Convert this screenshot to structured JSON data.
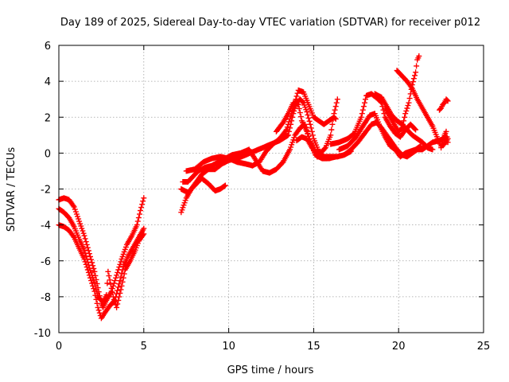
{
  "chart_data": {
    "type": "scatter",
    "title": "Day 189 of 2025, Sidereal Day-to-day VTEC variation (SDTVAR) for receiver p012",
    "xlabel": "GPS time / hours",
    "ylabel": "SDTVAR / TECUs",
    "xlim": [
      0,
      25
    ],
    "ylim": [
      -10,
      6
    ],
    "xticks": [
      0,
      5,
      10,
      15,
      20,
      25
    ],
    "yticks": [
      -10,
      -8,
      -6,
      -4,
      -2,
      0,
      2,
      4,
      6
    ],
    "grid": true,
    "marker": "plus",
    "color": "#ff0000",
    "series": [
      {
        "points": [
          [
            0.0,
            -2.6
          ],
          [
            0.3,
            -2.5
          ],
          [
            0.6,
            -2.6
          ],
          [
            0.9,
            -3.0
          ],
          [
            1.2,
            -3.8
          ],
          [
            1.5,
            -4.6
          ],
          [
            1.8,
            -5.6
          ],
          [
            2.1,
            -6.6
          ],
          [
            2.3,
            -7.5
          ],
          [
            2.5,
            -8.4
          ],
          [
            2.6,
            -8.6
          ],
          [
            2.8,
            -8.2
          ],
          [
            3.1,
            -7.7
          ],
          [
            3.4,
            -6.8
          ],
          [
            3.7,
            -5.9
          ],
          [
            4.0,
            -5.1
          ],
          [
            4.3,
            -4.6
          ],
          [
            4.6,
            -4.0
          ],
          [
            4.8,
            -3.2
          ],
          [
            5.0,
            -2.5
          ]
        ]
      },
      {
        "points": [
          [
            0.0,
            -4.0
          ],
          [
            0.3,
            -4.1
          ],
          [
            0.6,
            -4.3
          ],
          [
            0.9,
            -4.7
          ],
          [
            1.2,
            -5.3
          ],
          [
            1.5,
            -5.9
          ],
          [
            1.8,
            -6.8
          ],
          [
            2.1,
            -7.7
          ],
          [
            2.3,
            -8.6
          ],
          [
            2.5,
            -9.2
          ],
          [
            2.7,
            -8.9
          ],
          [
            3.0,
            -8.5
          ],
          [
            3.3,
            -8.2
          ],
          [
            3.6,
            -7.1
          ],
          [
            3.8,
            -6.3
          ],
          [
            4.1,
            -5.7
          ],
          [
            4.4,
            -5.2
          ],
          [
            4.7,
            -4.7
          ],
          [
            5.0,
            -4.2
          ]
        ]
      },
      {
        "points": [
          [
            0.0,
            -3.1
          ],
          [
            0.3,
            -3.3
          ],
          [
            0.6,
            -3.6
          ],
          [
            0.9,
            -4.1
          ],
          [
            1.2,
            -4.8
          ],
          [
            1.5,
            -5.4
          ],
          [
            1.8,
            -6.4
          ],
          [
            2.1,
            -7.2
          ],
          [
            2.3,
            -8.0
          ],
          [
            2.6,
            -8.3
          ],
          [
            2.8,
            -7.9
          ],
          [
            2.9,
            -6.6
          ],
          [
            3.2,
            -8.0
          ],
          [
            3.4,
            -8.6
          ],
          [
            3.7,
            -7.4
          ],
          [
            3.9,
            -6.5
          ],
          [
            4.2,
            -6.0
          ],
          [
            4.5,
            -5.4
          ],
          [
            4.7,
            -4.9
          ],
          [
            5.0,
            -4.5
          ]
        ]
      },
      {
        "points": [
          [
            7.2,
            -3.3
          ],
          [
            7.5,
            -2.5
          ],
          [
            7.8,
            -2.0
          ],
          [
            8.1,
            -1.6
          ],
          [
            8.4,
            -1.2
          ],
          [
            8.8,
            -0.9
          ],
          [
            9.2,
            -0.9
          ],
          [
            9.6,
            -0.6
          ],
          [
            10.0,
            -0.4
          ],
          [
            10.5,
            -0.3
          ],
          [
            11.0,
            -0.1
          ],
          [
            11.5,
            0.1
          ],
          [
            12.0,
            0.3
          ],
          [
            12.5,
            0.5
          ],
          [
            13.0,
            0.7
          ],
          [
            13.5,
            1.0
          ],
          [
            13.8,
            2.2
          ],
          [
            14.0,
            2.8
          ],
          [
            14.2,
            3.0
          ],
          [
            14.4,
            2.8
          ],
          [
            14.6,
            2.3
          ],
          [
            14.8,
            1.6
          ],
          [
            15.0,
            0.8
          ],
          [
            15.3,
            0.1
          ],
          [
            15.6,
            -0.2
          ],
          [
            16.0,
            -0.2
          ],
          [
            16.4,
            -0.2
          ],
          [
            16.8,
            -0.1
          ],
          [
            17.2,
            0.1
          ]
        ]
      },
      {
        "points": [
          [
            7.3,
            -1.6
          ],
          [
            7.6,
            -1.6
          ],
          [
            7.9,
            -1.3
          ],
          [
            8.2,
            -1.0
          ],
          [
            8.6,
            -0.8
          ],
          [
            9.0,
            -0.7
          ],
          [
            9.4,
            -0.5
          ],
          [
            9.8,
            -0.3
          ],
          [
            10.2,
            -0.1
          ],
          [
            10.7,
            0.0
          ],
          [
            11.2,
            0.2
          ],
          [
            11.6,
            -0.4
          ],
          [
            12.0,
            -1.0
          ],
          [
            12.4,
            -1.1
          ],
          [
            12.8,
            -0.9
          ],
          [
            13.2,
            -0.5
          ],
          [
            13.6,
            0.2
          ],
          [
            13.9,
            1.0
          ],
          [
            14.2,
            1.4
          ],
          [
            14.5,
            1.6
          ],
          [
            14.8,
            0.6
          ],
          [
            15.1,
            -0.1
          ],
          [
            15.5,
            -0.3
          ],
          [
            15.8,
            -0.3
          ]
        ]
      },
      {
        "points": [
          [
            7.2,
            -2.0
          ],
          [
            7.6,
            -2.2
          ],
          [
            8.0,
            -1.8
          ],
          [
            8.4,
            -1.4
          ],
          [
            8.8,
            -1.7
          ],
          [
            9.2,
            -2.1
          ],
          [
            9.5,
            -2.0
          ],
          [
            9.8,
            -1.8
          ]
        ]
      },
      {
        "points": [
          [
            7.5,
            -1.0
          ],
          [
            8.0,
            -0.9
          ],
          [
            8.5,
            -0.5
          ],
          [
            9.0,
            -0.3
          ],
          [
            9.5,
            -0.2
          ],
          [
            10.0,
            -0.3
          ],
          [
            10.5,
            -0.5
          ],
          [
            11.0,
            -0.6
          ],
          [
            11.4,
            -0.7
          ],
          [
            11.8,
            -0.5
          ],
          [
            12.2,
            0.1
          ],
          [
            12.6,
            0.5
          ],
          [
            13.0,
            0.8
          ],
          [
            13.4,
            1.3
          ],
          [
            13.8,
            2.5
          ],
          [
            14.1,
            3.5
          ],
          [
            14.4,
            3.4
          ],
          [
            14.7,
            2.7
          ],
          [
            15.0,
            2.0
          ],
          [
            15.3,
            1.8
          ],
          [
            15.6,
            1.6
          ],
          [
            15.9,
            1.8
          ],
          [
            16.2,
            2.0
          ],
          [
            16.3,
            1.9
          ]
        ]
      },
      {
        "points": [
          [
            12.8,
            1.2
          ],
          [
            13.2,
            1.7
          ],
          [
            13.5,
            2.2
          ],
          [
            13.8,
            2.8
          ],
          [
            14.1,
            2.7
          ],
          [
            14.3,
            1.8
          ],
          [
            14.6,
            1.2
          ],
          [
            14.9,
            0.4
          ],
          [
            15.2,
            -0.2
          ],
          [
            15.5,
            -0.2
          ],
          [
            15.9,
            -0.3
          ],
          [
            16.3,
            -0.2
          ]
        ]
      },
      {
        "points": [
          [
            14.0,
            0.7
          ],
          [
            14.3,
            0.9
          ],
          [
            14.6,
            0.8
          ],
          [
            14.9,
            0.3
          ],
          [
            15.3,
            -0.1
          ],
          [
            15.7,
            0.3
          ],
          [
            16.0,
            1.0
          ],
          [
            16.2,
            2.2
          ],
          [
            16.4,
            3.0
          ]
        ]
      },
      {
        "points": [
          [
            16.0,
            0.5
          ],
          [
            16.5,
            0.6
          ],
          [
            17.0,
            0.8
          ],
          [
            17.4,
            1.1
          ],
          [
            17.8,
            2.0
          ],
          [
            18.1,
            3.2
          ],
          [
            18.4,
            3.3
          ],
          [
            18.8,
            3.0
          ],
          [
            19.0,
            2.8
          ],
          [
            19.2,
            2.0
          ],
          [
            19.5,
            1.5
          ],
          [
            19.8,
            1.1
          ],
          [
            20.1,
            0.9
          ],
          [
            20.4,
            1.3
          ],
          [
            20.7,
            1.6
          ],
          [
            21.0,
            1.3
          ]
        ]
      },
      {
        "points": [
          [
            16.5,
            0.2
          ],
          [
            17.0,
            0.4
          ],
          [
            17.5,
            0.9
          ],
          [
            17.9,
            1.5
          ],
          [
            18.3,
            2.1
          ],
          [
            18.6,
            2.2
          ],
          [
            18.9,
            1.5
          ],
          [
            19.2,
            0.9
          ],
          [
            19.5,
            0.4
          ],
          [
            19.8,
            0.2
          ],
          [
            20.1,
            -0.2
          ],
          [
            20.4,
            0.0
          ],
          [
            20.7,
            0.1
          ],
          [
            21.0,
            0.2
          ],
          [
            21.3,
            0.4
          ]
        ]
      },
      {
        "points": [
          [
            16.8,
            -0.1
          ],
          [
            17.2,
            0.2
          ],
          [
            17.6,
            0.6
          ],
          [
            18.0,
            1.1
          ],
          [
            18.4,
            1.6
          ],
          [
            18.7,
            1.7
          ],
          [
            19.0,
            1.4
          ],
          [
            19.3,
            1.0
          ],
          [
            19.6,
            0.6
          ],
          [
            19.9,
            0.2
          ],
          [
            20.2,
            -0.1
          ],
          [
            20.5,
            -0.2
          ],
          [
            20.8,
            0.0
          ],
          [
            21.1,
            0.2
          ],
          [
            21.4,
            0.2
          ],
          [
            21.7,
            0.4
          ],
          [
            22.0,
            0.6
          ],
          [
            22.4,
            0.7
          ],
          [
            22.8,
            0.9
          ]
        ]
      },
      {
        "points": [
          [
            18.6,
            3.3
          ],
          [
            19.0,
            3.1
          ],
          [
            19.3,
            2.6
          ],
          [
            19.6,
            2.1
          ],
          [
            19.9,
            1.8
          ],
          [
            20.2,
            1.6
          ],
          [
            20.5,
            1.3
          ],
          [
            20.8,
            1.0
          ],
          [
            21.1,
            0.8
          ],
          [
            21.4,
            0.6
          ],
          [
            21.7,
            0.3
          ],
          [
            22.0,
            0.2
          ]
        ]
      },
      {
        "points": [
          [
            19.2,
            2.5
          ],
          [
            19.5,
            2.0
          ],
          [
            19.8,
            1.5
          ],
          [
            20.0,
            1.2
          ],
          [
            20.2,
            1.4
          ],
          [
            20.4,
            2.2
          ],
          [
            20.6,
            2.8
          ],
          [
            20.8,
            3.8
          ],
          [
            21.0,
            4.5
          ],
          [
            21.1,
            5.2
          ],
          [
            21.2,
            5.4
          ]
        ]
      },
      {
        "points": [
          [
            19.9,
            4.6
          ],
          [
            20.2,
            4.3
          ],
          [
            20.5,
            4.0
          ],
          [
            20.8,
            3.6
          ],
          [
            21.1,
            3.0
          ],
          [
            21.4,
            2.5
          ],
          [
            21.7,
            2.0
          ],
          [
            22.0,
            1.5
          ],
          [
            22.3,
            0.8
          ],
          [
            22.5,
            0.4
          ],
          [
            22.7,
            0.5
          ],
          [
            22.9,
            0.8
          ]
        ]
      },
      {
        "points": [
          [
            22.4,
            2.4
          ],
          [
            22.5,
            2.5
          ],
          [
            22.6,
            2.7
          ],
          [
            22.7,
            2.8
          ],
          [
            22.8,
            3.0
          ],
          [
            22.9,
            2.9
          ]
        ]
      },
      {
        "points": [
          [
            22.5,
            0.3
          ],
          [
            22.6,
            0.7
          ],
          [
            22.7,
            1.0
          ],
          [
            22.8,
            1.2
          ],
          [
            22.9,
            0.6
          ]
        ]
      }
    ]
  }
}
